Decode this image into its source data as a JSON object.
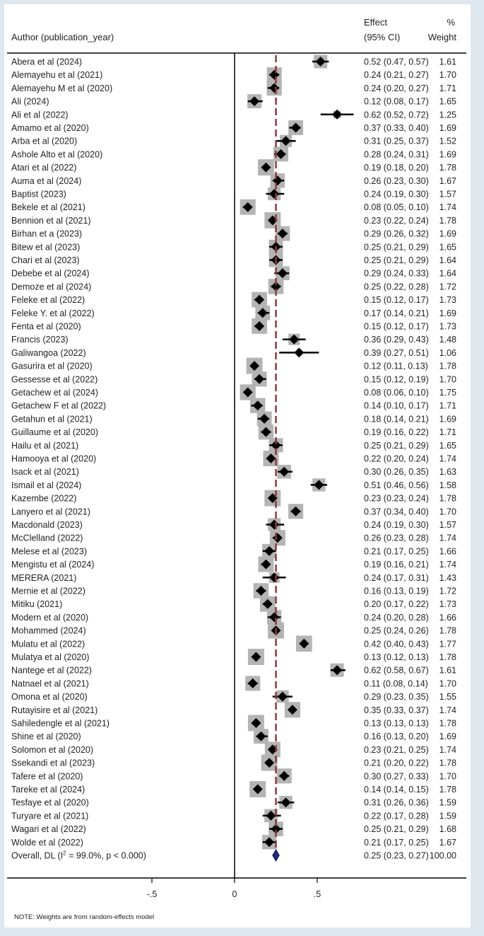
{
  "header": {
    "author_col": "Author (publication_year)",
    "effect_line1": "Effect",
    "effect_line2": "(95% CI)",
    "weight_line1": "%",
    "weight_line2": "Weight"
  },
  "note": "NOTE: Weights are from random-effects model",
  "colors": {
    "diamond": "#000000",
    "box": "#b4b4b4",
    "ci": "#000000",
    "ref_line": "#8b3a3a",
    "overall_diamond": "#1f2a7a"
  },
  "chart_data": {
    "type": "forest",
    "xlim": [
      -0.85,
      0.95
    ],
    "xticks": [
      -0.5,
      0,
      0.5
    ],
    "xtick_labels": [
      "-.5",
      "0",
      ".5"
    ],
    "null_line": 0,
    "pooled_estimate": 0.25,
    "studies": [
      {
        "label": "Abera et al (2024)",
        "es": 0.52,
        "lo": 0.47,
        "hi": 0.57,
        "ci_text": "0.52 (0.47, 0.57)",
        "weight": "1.61"
      },
      {
        "label": "Alemayehu et al (2021)",
        "es": 0.24,
        "lo": 0.21,
        "hi": 0.27,
        "ci_text": "0.24 (0.21, 0.27)",
        "weight": "1.70"
      },
      {
        "label": "Alemayehu M et al (2020)",
        "es": 0.24,
        "lo": 0.2,
        "hi": 0.27,
        "ci_text": "0.24 (0.20, 0.27)",
        "weight": "1.71"
      },
      {
        "label": "Ali (2024)",
        "es": 0.12,
        "lo": 0.08,
        "hi": 0.17,
        "ci_text": "0.12 (0.08, 0.17)",
        "weight": "1.65"
      },
      {
        "label": "Ali et al (2022)",
        "es": 0.62,
        "lo": 0.52,
        "hi": 0.72,
        "ci_text": "0.62 (0.52, 0.72)",
        "weight": "1.25"
      },
      {
        "label": "Amamo et al (2020)",
        "es": 0.37,
        "lo": 0.33,
        "hi": 0.4,
        "ci_text": "0.37 (0.33, 0.40)",
        "weight": "1.69"
      },
      {
        "label": "Arba et al (2020)",
        "es": 0.31,
        "lo": 0.25,
        "hi": 0.37,
        "ci_text": "0.31 (0.25, 0.37)",
        "weight": "1.52"
      },
      {
        "label": "Ashole Alto et al (2020)",
        "es": 0.28,
        "lo": 0.24,
        "hi": 0.31,
        "ci_text": "0.28 (0.24, 0.31)",
        "weight": "1.69"
      },
      {
        "label": "Atari et al (2022)",
        "es": 0.19,
        "lo": 0.18,
        "hi": 0.2,
        "ci_text": "0.19 (0.18, 0.20)",
        "weight": "1.78"
      },
      {
        "label": "Auma et al (2024)",
        "es": 0.26,
        "lo": 0.23,
        "hi": 0.3,
        "ci_text": "0.26 (0.23, 0.30)",
        "weight": "1.67"
      },
      {
        "label": "Baptist (2023)",
        "es": 0.24,
        "lo": 0.19,
        "hi": 0.3,
        "ci_text": "0.24 (0.19, 0.30)",
        "weight": "1.57"
      },
      {
        "label": "Bekele et al (2021)",
        "es": 0.08,
        "lo": 0.05,
        "hi": 0.1,
        "ci_text": "0.08 (0.05, 0.10)",
        "weight": "1.74"
      },
      {
        "label": "Bennion et al (2021)",
        "es": 0.23,
        "lo": 0.22,
        "hi": 0.24,
        "ci_text": "0.23 (0.22, 0.24)",
        "weight": "1.78"
      },
      {
        "label": "Birhan et a (2023)",
        "es": 0.29,
        "lo": 0.26,
        "hi": 0.32,
        "ci_text": "0.29 (0.26, 0.32)",
        "weight": "1.69"
      },
      {
        "label": "Bitew et al (2023)",
        "es": 0.25,
        "lo": 0.21,
        "hi": 0.29,
        "ci_text": "0.25 (0.21, 0.29)",
        "weight": "1.65"
      },
      {
        "label": "Chari et al (2023)",
        "es": 0.25,
        "lo": 0.21,
        "hi": 0.29,
        "ci_text": "0.25 (0.21, 0.29)",
        "weight": "1.64"
      },
      {
        "label": "Debebe et al (2024)",
        "es": 0.29,
        "lo": 0.24,
        "hi": 0.33,
        "ci_text": "0.29 (0.24, 0.33)",
        "weight": "1.64"
      },
      {
        "label": "Demoze et al (2024)",
        "es": 0.25,
        "lo": 0.22,
        "hi": 0.28,
        "ci_text": "0.25 (0.22, 0.28)",
        "weight": "1.72"
      },
      {
        "label": "Feleke et al (2022)",
        "es": 0.15,
        "lo": 0.12,
        "hi": 0.17,
        "ci_text": "0.15 (0.12, 0.17)",
        "weight": "1.73"
      },
      {
        "label": "Feleke Y. et al (2022)",
        "es": 0.17,
        "lo": 0.14,
        "hi": 0.21,
        "ci_text": "0.17 (0.14, 0.21)",
        "weight": "1.69"
      },
      {
        "label": "Fenta et al (2020)",
        "es": 0.15,
        "lo": 0.12,
        "hi": 0.17,
        "ci_text": "0.15 (0.12, 0.17)",
        "weight": "1.73"
      },
      {
        "label": "Francis (2023)",
        "es": 0.36,
        "lo": 0.29,
        "hi": 0.43,
        "ci_text": "0.36 (0.29, 0.43)",
        "weight": "1.48"
      },
      {
        "label": "Galiwangoa (2022)",
        "es": 0.39,
        "lo": 0.27,
        "hi": 0.51,
        "ci_text": "0.39 (0.27, 0.51)",
        "weight": "1.06"
      },
      {
        "label": "Gasurira et al (2020)",
        "es": 0.12,
        "lo": 0.11,
        "hi": 0.13,
        "ci_text": "0.12 (0.11, 0.13)",
        "weight": "1.78"
      },
      {
        "label": "Gessesse et al (2022)",
        "es": 0.15,
        "lo": 0.12,
        "hi": 0.19,
        "ci_text": "0.15 (0.12, 0.19)",
        "weight": "1.70"
      },
      {
        "label": "Getachew et al (2024)",
        "es": 0.08,
        "lo": 0.06,
        "hi": 0.1,
        "ci_text": "0.08 (0.06, 0.10)",
        "weight": "1.75"
      },
      {
        "label": "Getachew F et al (2022)",
        "es": 0.14,
        "lo": 0.1,
        "hi": 0.17,
        "ci_text": "0.14 (0.10, 0.17)",
        "weight": "1.71"
      },
      {
        "label": "Getahun et al (2021)",
        "es": 0.18,
        "lo": 0.14,
        "hi": 0.21,
        "ci_text": "0.18 (0.14, 0.21)",
        "weight": "1.69"
      },
      {
        "label": "Guillaume et al (2020)",
        "es": 0.19,
        "lo": 0.16,
        "hi": 0.22,
        "ci_text": "0.19 (0.16, 0.22)",
        "weight": "1.71"
      },
      {
        "label": "Hailu et al (2021)",
        "es": 0.25,
        "lo": 0.21,
        "hi": 0.29,
        "ci_text": "0.25 (0.21, 0.29)",
        "weight": "1.65"
      },
      {
        "label": "Hamooya et al (2020)",
        "es": 0.22,
        "lo": 0.2,
        "hi": 0.24,
        "ci_text": "0.22 (0.20, 0.24)",
        "weight": "1.74"
      },
      {
        "label": "Isack et al (2021)",
        "es": 0.3,
        "lo": 0.26,
        "hi": 0.35,
        "ci_text": "0.30 (0.26, 0.35)",
        "weight": "1.63"
      },
      {
        "label": "Ismail et al (2024)",
        "es": 0.51,
        "lo": 0.46,
        "hi": 0.56,
        "ci_text": "0.51 (0.46, 0.56)",
        "weight": "1.58"
      },
      {
        "label": "Kazembe (2022)",
        "es": 0.23,
        "lo": 0.23,
        "hi": 0.24,
        "ci_text": "0.23 (0.23, 0.24)",
        "weight": "1.78"
      },
      {
        "label": "Lanyero et al (2021)",
        "es": 0.37,
        "lo": 0.34,
        "hi": 0.4,
        "ci_text": "0.37 (0.34, 0.40)",
        "weight": "1.70"
      },
      {
        "label": "Macdonald (2023)",
        "es": 0.24,
        "lo": 0.19,
        "hi": 0.3,
        "ci_text": "0.24 (0.19, 0.30)",
        "weight": "1.57"
      },
      {
        "label": "McClelland (2022)",
        "es": 0.26,
        "lo": 0.23,
        "hi": 0.28,
        "ci_text": "0.26 (0.23, 0.28)",
        "weight": "1.74"
      },
      {
        "label": "Melese et al (2023)",
        "es": 0.21,
        "lo": 0.17,
        "hi": 0.25,
        "ci_text": "0.21 (0.17, 0.25)",
        "weight": "1.66"
      },
      {
        "label": "Mengistu et al (2024)",
        "es": 0.19,
        "lo": 0.16,
        "hi": 0.21,
        "ci_text": "0.19 (0.16, 0.21)",
        "weight": "1.74"
      },
      {
        "label": "MERERA (2021)",
        "es": 0.24,
        "lo": 0.17,
        "hi": 0.31,
        "ci_text": "0.24 (0.17, 0.31)",
        "weight": "1.43"
      },
      {
        "label": "Mernie et al (2022)",
        "es": 0.16,
        "lo": 0.13,
        "hi": 0.19,
        "ci_text": "0.16 (0.13, 0.19)",
        "weight": "1.72"
      },
      {
        "label": "Mitiku (2021)",
        "es": 0.2,
        "lo": 0.17,
        "hi": 0.22,
        "ci_text": "0.20 (0.17, 0.22)",
        "weight": "1.73"
      },
      {
        "label": "Modern et al (2020)",
        "es": 0.24,
        "lo": 0.2,
        "hi": 0.28,
        "ci_text": "0.24 (0.20, 0.28)",
        "weight": "1.66"
      },
      {
        "label": "Mohammed (2024)",
        "es": 0.25,
        "lo": 0.24,
        "hi": 0.26,
        "ci_text": "0.25 (0.24, 0.26)",
        "weight": "1.78"
      },
      {
        "label": "Mulatu et al (2022)",
        "es": 0.42,
        "lo": 0.4,
        "hi": 0.43,
        "ci_text": "0.42 (0.40, 0.43)",
        "weight": "1.77"
      },
      {
        "label": "Mulatya et al (2020)",
        "es": 0.13,
        "lo": 0.12,
        "hi": 0.13,
        "ci_text": "0.13 (0.12, 0.13)",
        "weight": "1.78"
      },
      {
        "label": "Nantege et al (2022)",
        "es": 0.62,
        "lo": 0.58,
        "hi": 0.67,
        "ci_text": "0.62 (0.58, 0.67)",
        "weight": "1.61"
      },
      {
        "label": "Natnael et al (2021)",
        "es": 0.11,
        "lo": 0.08,
        "hi": 0.14,
        "ci_text": "0.11 (0.08, 0.14)",
        "weight": "1.70"
      },
      {
        "label": "Omona et al (2020)",
        "es": 0.29,
        "lo": 0.23,
        "hi": 0.35,
        "ci_text": "0.29 (0.23, 0.35)",
        "weight": "1.55"
      },
      {
        "label": "Rutayisire et al (2021)",
        "es": 0.35,
        "lo": 0.33,
        "hi": 0.37,
        "ci_text": "0.35 (0.33, 0.37)",
        "weight": "1.74"
      },
      {
        "label": "Sahiledengle et al (2021)",
        "es": 0.13,
        "lo": 0.13,
        "hi": 0.13,
        "ci_text": "0.13 (0.13, 0.13)",
        "weight": "1.78"
      },
      {
        "label": "Shine et al (2020)",
        "es": 0.16,
        "lo": 0.13,
        "hi": 0.2,
        "ci_text": "0.16 (0.13, 0.20)",
        "weight": "1.69"
      },
      {
        "label": "Solomon et al (2020)",
        "es": 0.23,
        "lo": 0.21,
        "hi": 0.25,
        "ci_text": "0.23 (0.21, 0.25)",
        "weight": "1.74"
      },
      {
        "label": "Ssekandi et al (2023)",
        "es": 0.21,
        "lo": 0.2,
        "hi": 0.22,
        "ci_text": "0.21 (0.20, 0.22)",
        "weight": "1.78"
      },
      {
        "label": "Tafere et al (2020)",
        "es": 0.3,
        "lo": 0.27,
        "hi": 0.33,
        "ci_text": "0.30 (0.27, 0.33)",
        "weight": "1.70"
      },
      {
        "label": "Tareke et al (2024)",
        "es": 0.14,
        "lo": 0.14,
        "hi": 0.15,
        "ci_text": "0.14 (0.14, 0.15)",
        "weight": "1.78"
      },
      {
        "label": "Tesfaye et al (2020)",
        "es": 0.31,
        "lo": 0.26,
        "hi": 0.36,
        "ci_text": "0.31 (0.26, 0.36)",
        "weight": "1.59"
      },
      {
        "label": "Turyare et al (2021)",
        "es": 0.22,
        "lo": 0.17,
        "hi": 0.28,
        "ci_text": "0.22 (0.17, 0.28)",
        "weight": "1.59"
      },
      {
        "label": "Wagari et al (2022)",
        "es": 0.25,
        "lo": 0.21,
        "hi": 0.29,
        "ci_text": "0.25 (0.21, 0.29)",
        "weight": "1.68"
      },
      {
        "label": "Wolde et al (2022)",
        "es": 0.21,
        "lo": 0.17,
        "hi": 0.25,
        "ci_text": "0.21 (0.17, 0.25)",
        "weight": "1.67"
      }
    ],
    "overall": {
      "label_prefix": "Overall, DL (I",
      "label_sup": "2",
      "label_suffix": " = 99.0%, p < 0.000)",
      "es": 0.25,
      "lo": 0.23,
      "hi": 0.27,
      "ci_text": "0.25 (0.23, 0.27)",
      "weight": "100.00"
    }
  }
}
